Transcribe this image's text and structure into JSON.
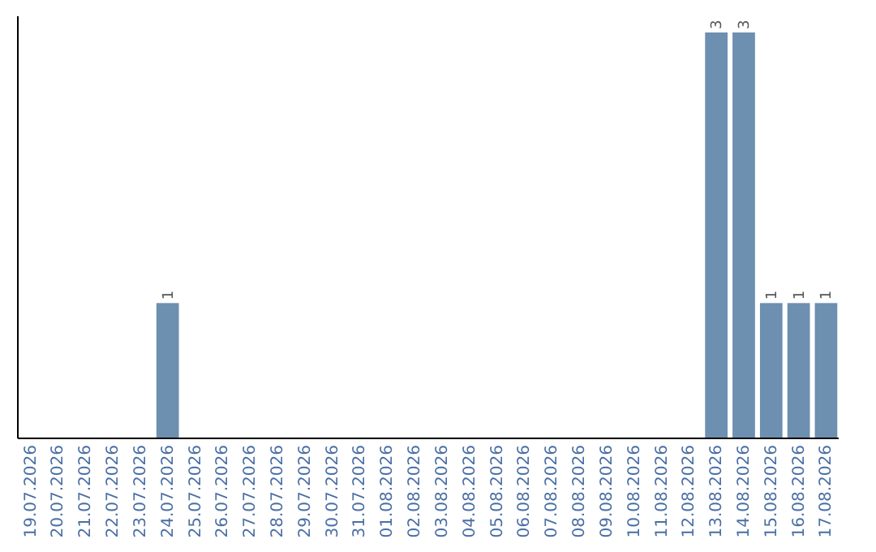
{
  "chart_data": {
    "type": "bar",
    "categories": [
      "19.07.2026",
      "20.07.2026",
      "21.07.2026",
      "22.07.2026",
      "23.07.2026",
      "24.07.2026",
      "25.07.2026",
      "26.07.2026",
      "27.07.2026",
      "28.07.2026",
      "29.07.2026",
      "30.07.2026",
      "31.07.2026",
      "01.08.2026",
      "02.08.2026",
      "03.08.2026",
      "04.08.2026",
      "05.08.2026",
      "06.08.2026",
      "07.08.2026",
      "08.08.2026",
      "09.08.2026",
      "10.08.2026",
      "11.08.2026",
      "12.08.2026",
      "13.08.2026",
      "14.08.2026",
      "15.08.2026",
      "16.08.2026",
      "17.08.2026"
    ],
    "values": [
      0,
      0,
      0,
      0,
      0,
      1,
      0,
      0,
      0,
      0,
      0,
      0,
      0,
      0,
      0,
      0,
      0,
      0,
      0,
      0,
      0,
      0,
      0,
      0,
      0,
      3,
      3,
      1,
      1,
      1
    ],
    "value_labels": [
      null,
      null,
      null,
      null,
      null,
      "1",
      null,
      null,
      null,
      null,
      null,
      null,
      null,
      null,
      null,
      null,
      null,
      null,
      null,
      null,
      null,
      null,
      null,
      null,
      null,
      "3",
      "3",
      "1",
      "1",
      "1"
    ],
    "color": "#6d8fb0",
    "tick_labels": "x"
  }
}
